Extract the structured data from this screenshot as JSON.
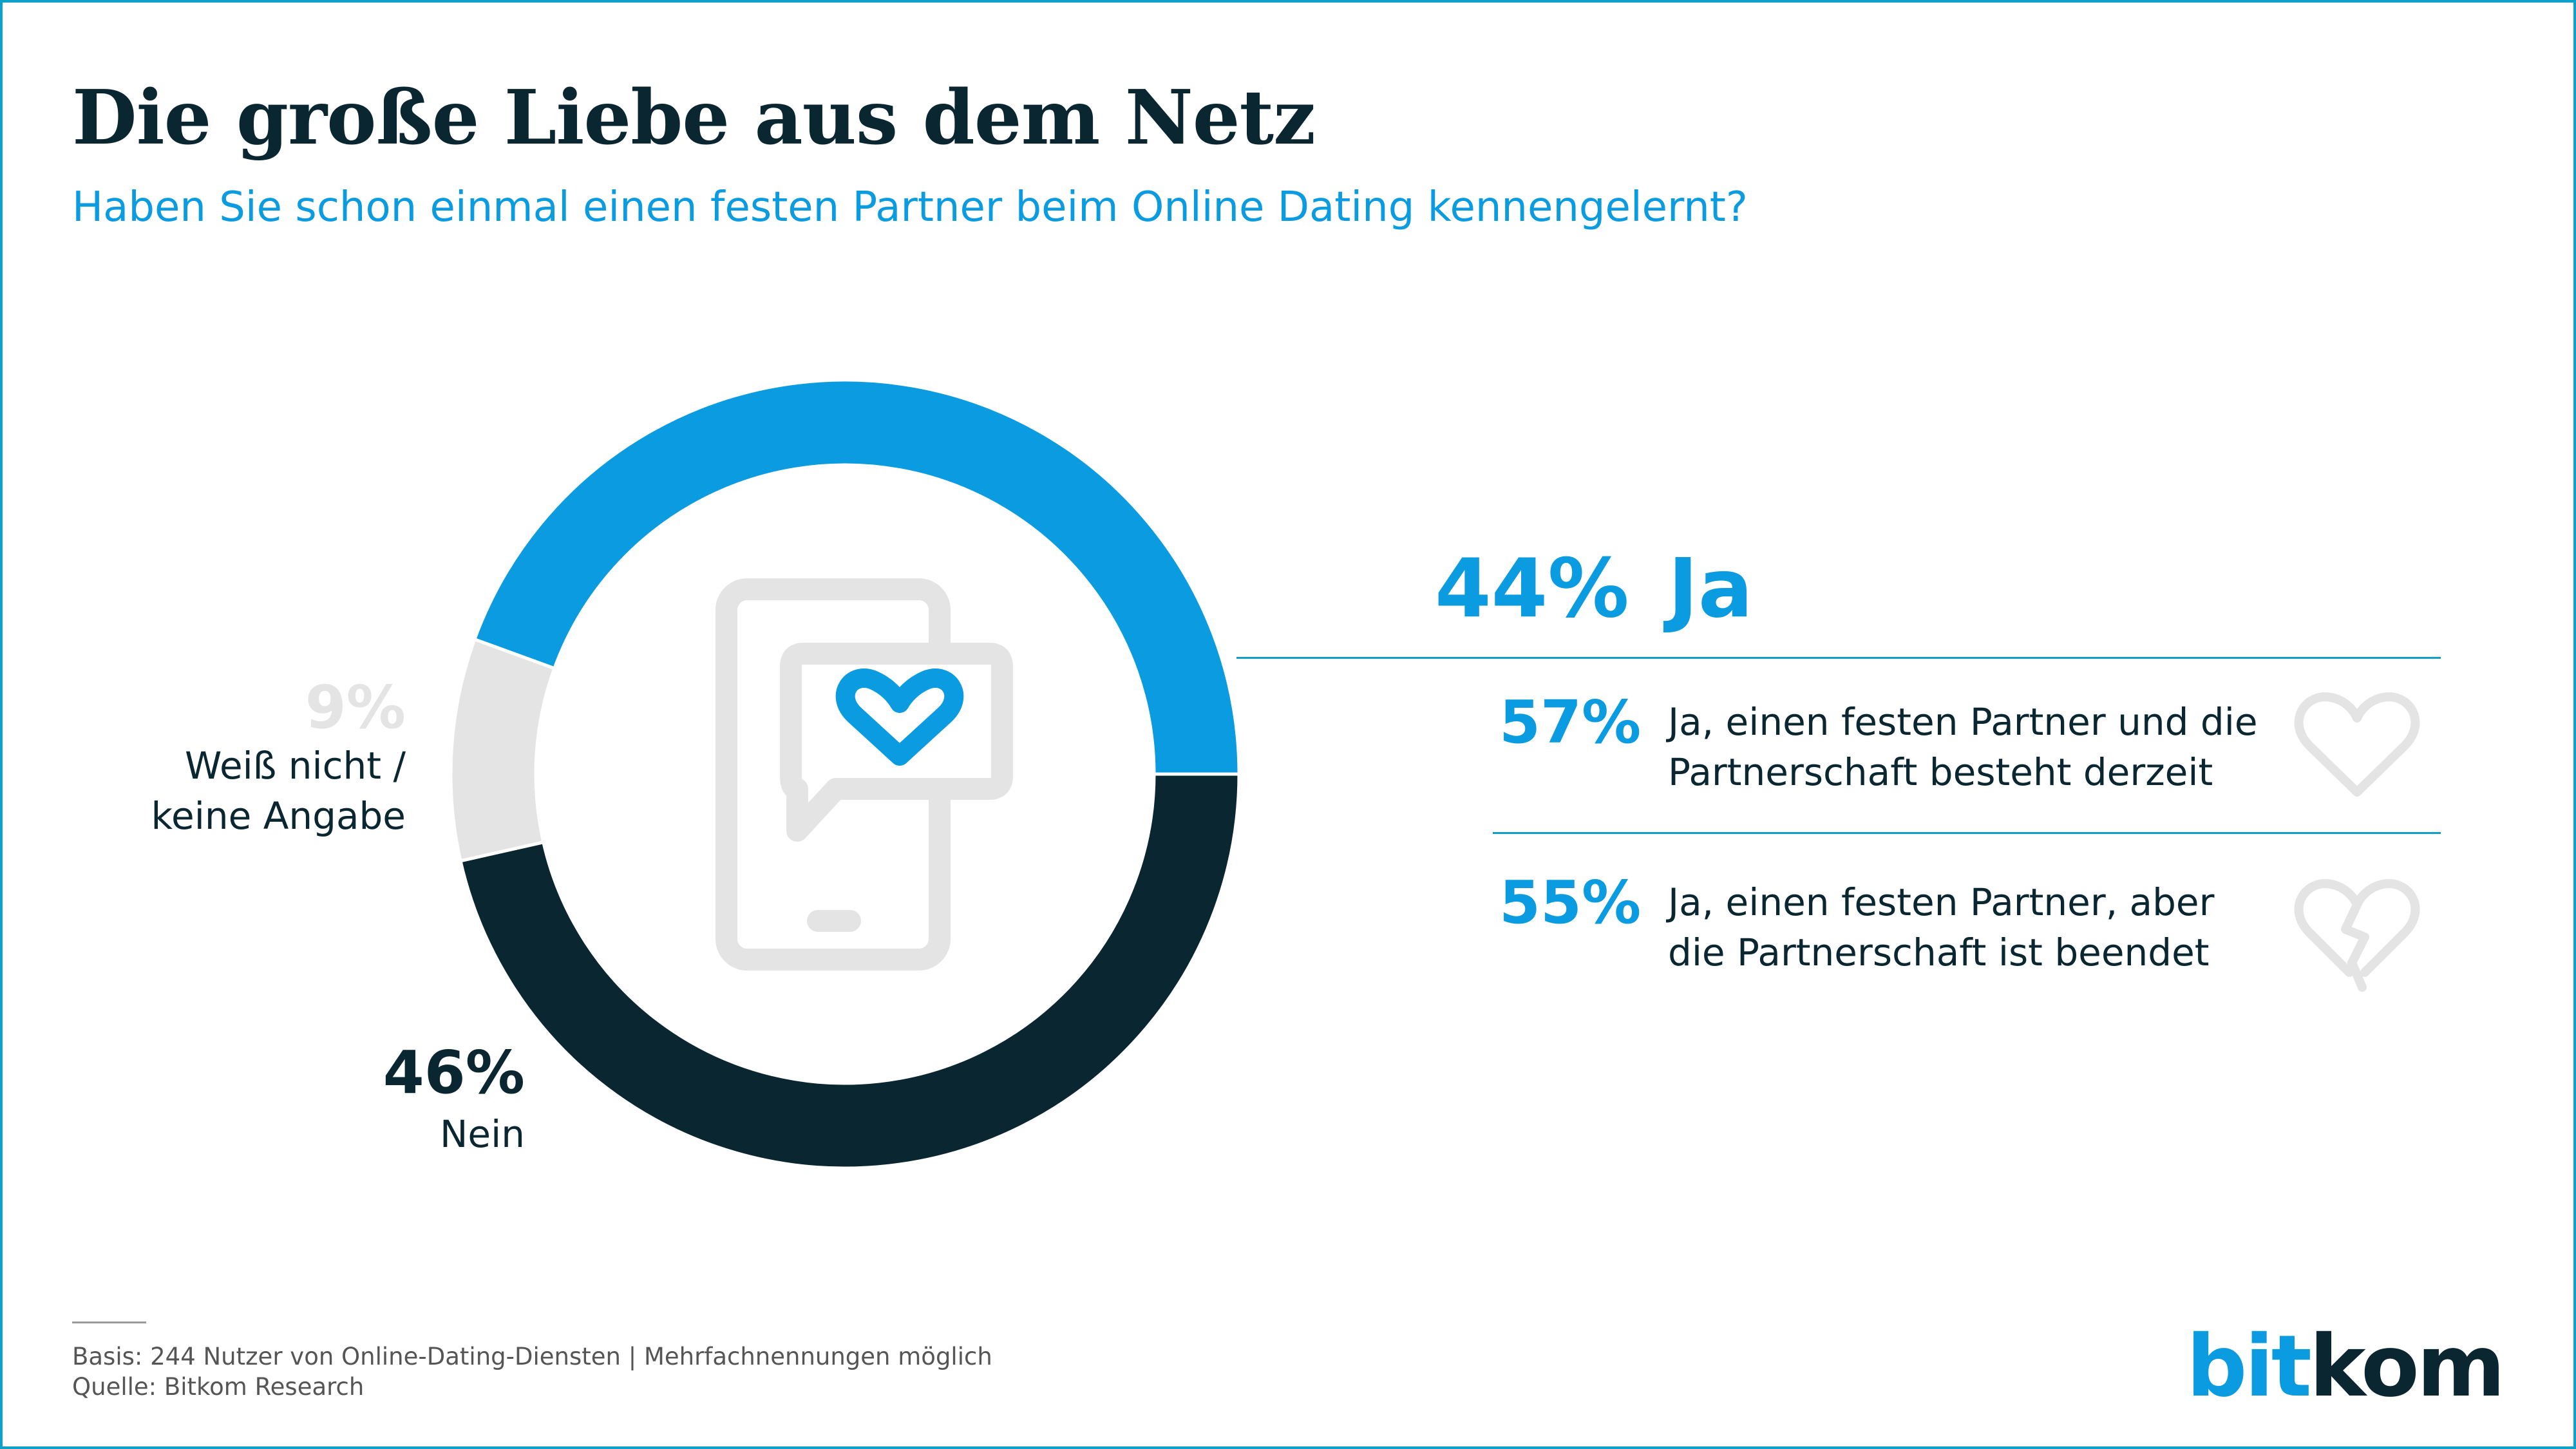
{
  "title": "Die große Liebe aus dem Netz",
  "subtitle": "Haben Sie schon einmal einen festen Partner beim Online Dating kennengelernt?",
  "colors": {
    "ja": "#0a9be0",
    "nein": "#0a2630",
    "weiss_nicht": "#e4e4e4",
    "icon": "#e4e4e4"
  },
  "chart_data": {
    "type": "pie",
    "title": "Haben Sie schon einmal einen festen Partner beim Online Dating kennengelernt?",
    "categories": [
      "Ja",
      "Nein",
      "Weiß nicht / keine Angabe"
    ],
    "values": [
      44,
      46,
      9
    ],
    "labels": {
      "ja": {
        "pct": "44%",
        "text": "Ja"
      },
      "nein": {
        "pct": "46%",
        "text": "Nein"
      },
      "weiss": {
        "pct": "9%",
        "line1": "Weiß nicht /",
        "line2": "keine Angabe"
      }
    },
    "breakdown": [
      {
        "pct": "57%",
        "line1": "Ja, einen festen Partner und die",
        "line2": "Partnerschaft besteht derzeit",
        "icon": "heart-icon"
      },
      {
        "pct": "55%",
        "line1": "Ja, einen festen Partner, aber",
        "line2": "die Partnerschaft ist beendet",
        "icon": "broken-heart-icon"
      }
    ]
  },
  "footer": {
    "basis": "Basis: 244 Nutzer von Online-Dating-Diensten | Mehrfachnennungen möglich",
    "quelle": "Quelle: Bitkom Research"
  },
  "logo": {
    "part1": "bit",
    "part2": "kom"
  }
}
